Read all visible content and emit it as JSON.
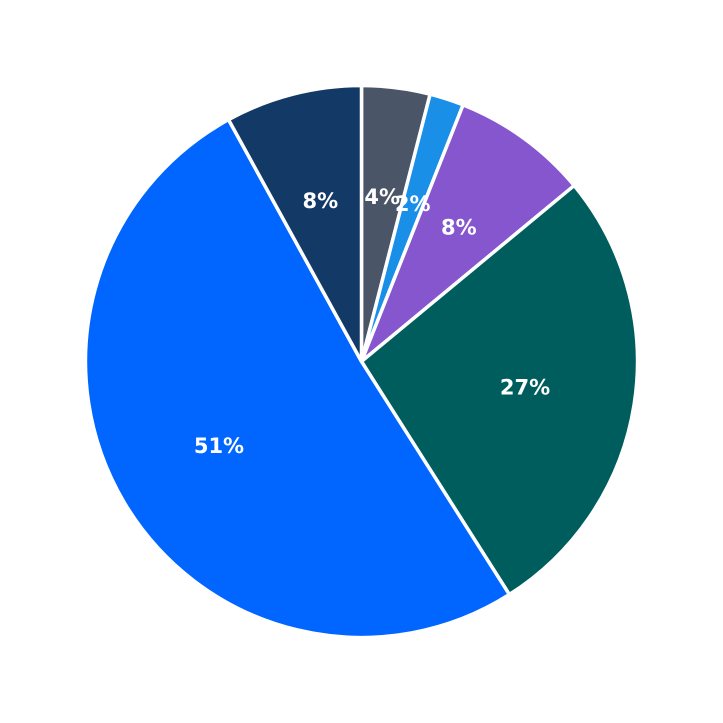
{
  "chart_data": {
    "type": "pie",
    "start_angle_deg": 90,
    "direction": "clockwise",
    "legend": "none",
    "slices": [
      {
        "label": "4%",
        "value": 4,
        "color": "#4a5568"
      },
      {
        "label": "2%",
        "value": 2,
        "color": "#1a8fe8"
      },
      {
        "label": "8%",
        "value": 8,
        "color": "#8556cd"
      },
      {
        "label": "27%",
        "value": 27,
        "color": "#005d5d"
      },
      {
        "label": "51%",
        "value": 51,
        "color": "#0066ff"
      },
      {
        "label": "8%",
        "value": 8,
        "color": "#133a67"
      }
    ]
  }
}
